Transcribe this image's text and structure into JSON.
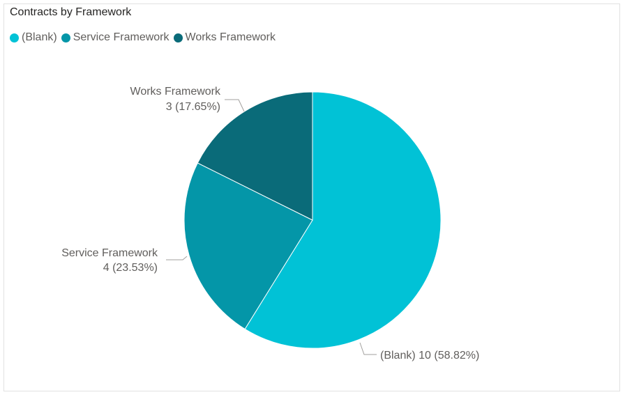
{
  "title": "Contracts by Framework",
  "chart_data": {
    "type": "pie",
    "title": "Contracts by Framework",
    "legend_position": "top-left",
    "categories": [
      "(Blank)",
      "Service Framework",
      "Works Framework"
    ],
    "values": [
      10,
      4,
      3
    ],
    "percentages": [
      "58.82%",
      "23.53%",
      "17.65%"
    ],
    "colors": [
      "#01c2d6",
      "#0496a8",
      "#0a6b79"
    ],
    "labels": [
      {
        "line1": "(Blank) 10 (58.82%)",
        "line2": ""
      },
      {
        "line1": "Service Framework",
        "line2": "4 (23.53%)"
      },
      {
        "line1": "Works Framework",
        "line2": "3 (17.65%)"
      }
    ]
  }
}
